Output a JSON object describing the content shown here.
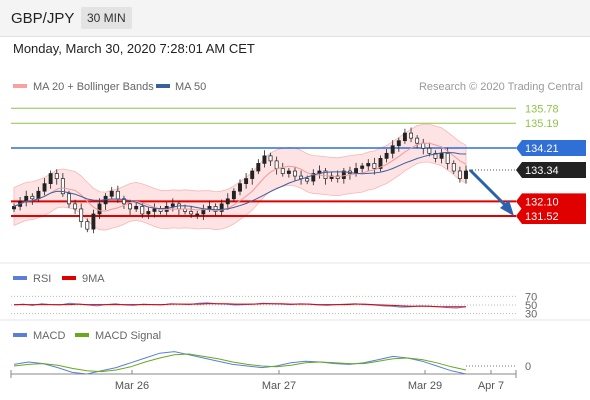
{
  "header": {
    "symbol": "GBP/JPY",
    "timeframe": "30 MIN"
  },
  "datetime": "Monday, March 30, 2020 7:28:01 AM CET",
  "legend": {
    "bb": "MA 20 + Bollinger Bands",
    "ma50": "MA 50",
    "credit": "Research © 2020 Trading Central"
  },
  "colors": {
    "bb": "#f7a1a1",
    "ma50": "#3a5f9e",
    "support": "#e00000",
    "resistance": "#2f6fd6",
    "target": "#8fc44a",
    "price_box": "#222222",
    "rsi": "#5b7fd9",
    "rsi_ma": "#e00000",
    "macd": "#5b7fd9",
    "macd_signal": "#69a81e",
    "forecast_arrow": "#2a62b0"
  },
  "chart_data": [
    {
      "type": "line",
      "panel": "price",
      "levels": [
        {
          "value": 135.78,
          "label": "135.78",
          "kind": "target"
        },
        {
          "value": 135.19,
          "label": "135.19",
          "kind": "target"
        },
        {
          "value": 134.21,
          "label": "134.21",
          "kind": "resistance"
        },
        {
          "value": 133.34,
          "label": "133.34",
          "kind": "last"
        },
        {
          "value": 132.1,
          "label": "132.10",
          "kind": "support"
        },
        {
          "value": 131.52,
          "label": "131.52",
          "kind": "support"
        }
      ],
      "x_ticks": [
        "Mar 26",
        "Mar 27",
        "Mar 29",
        "Apr 7"
      ],
      "close_series": [
        131.9,
        132.1,
        132.3,
        132.2,
        132.5,
        132.8,
        133.2,
        133.0,
        132.4,
        132.0,
        131.8,
        131.3,
        131.0,
        131.6,
        132.0,
        132.3,
        132.5,
        132.2,
        132.0,
        131.8,
        131.9,
        131.6,
        131.7,
        131.8,
        131.7,
        131.9,
        132.0,
        131.8,
        131.7,
        131.6,
        131.6,
        131.8,
        131.9,
        131.7,
        132.0,
        132.2,
        132.5,
        132.8,
        133.0,
        133.3,
        133.6,
        133.9,
        133.7,
        133.4,
        133.2,
        133.3,
        133.1,
        133.0,
        132.9,
        133.2,
        133.3,
        133.0,
        133.1,
        133.0,
        133.3,
        133.2,
        133.4,
        133.5,
        133.6,
        133.4,
        133.8,
        134.0,
        134.3,
        134.5,
        134.8,
        134.6,
        134.4,
        134.2,
        134.0,
        133.8,
        134.0,
        133.6,
        133.3,
        133.0,
        133.3
      ],
      "forecast": {
        "from": 133.34,
        "to": 131.52
      }
    },
    {
      "type": "line",
      "panel": "RSI",
      "series": [
        {
          "name": "RSI"
        },
        {
          "name": "9MA"
        }
      ],
      "levels": [
        70,
        50,
        30
      ],
      "rsi_values": [
        50,
        52,
        49,
        53,
        51,
        50,
        54,
        52,
        50,
        48,
        51,
        53,
        50,
        49,
        52,
        51,
        50,
        53,
        52,
        51,
        54,
        55,
        53,
        52,
        50,
        51,
        52,
        54,
        53,
        52,
        51,
        53,
        52,
        50,
        49,
        51,
        52,
        53,
        51,
        50,
        48,
        47,
        45,
        46,
        48,
        47,
        46,
        44,
        43,
        46
      ],
      "ma_values": [
        51,
        51,
        51,
        51,
        51,
        51,
        51,
        52,
        51,
        51,
        51,
        51,
        51,
        51,
        51,
        51,
        51,
        52,
        52,
        52,
        52,
        53,
        53,
        53,
        52,
        52,
        52,
        53,
        53,
        53,
        52,
        52,
        52,
        51,
        51,
        51,
        51,
        52,
        52,
        51,
        50,
        49,
        48,
        47,
        47,
        47,
        46,
        46,
        46,
        46
      ]
    },
    {
      "type": "line",
      "panel": "MACD",
      "series": [
        {
          "name": "MACD"
        },
        {
          "name": "MACD Signal"
        }
      ],
      "levels": [
        0
      ],
      "macd_values": [
        0.02,
        0.05,
        0.03,
        -0.02,
        -0.08,
        -0.1,
        -0.06,
        -0.02,
        0.04,
        0.1,
        0.16,
        0.18,
        0.14,
        0.1,
        0.06,
        0.02,
        0.0,
        -0.02,
        0.0,
        0.04,
        0.06,
        0.05,
        0.03,
        0.02,
        0.04,
        0.08,
        0.12,
        0.1,
        0.06,
        0.0,
        -0.06,
        -0.1
      ],
      "signal_values": [
        0.0,
        0.02,
        0.03,
        0.01,
        -0.03,
        -0.06,
        -0.07,
        -0.05,
        -0.01,
        0.05,
        0.1,
        0.14,
        0.15,
        0.12,
        0.09,
        0.05,
        0.02,
        0.0,
        -0.01,
        0.01,
        0.04,
        0.05,
        0.04,
        0.03,
        0.03,
        0.06,
        0.09,
        0.1,
        0.08,
        0.04,
        -0.01,
        -0.05
      ]
    }
  ]
}
